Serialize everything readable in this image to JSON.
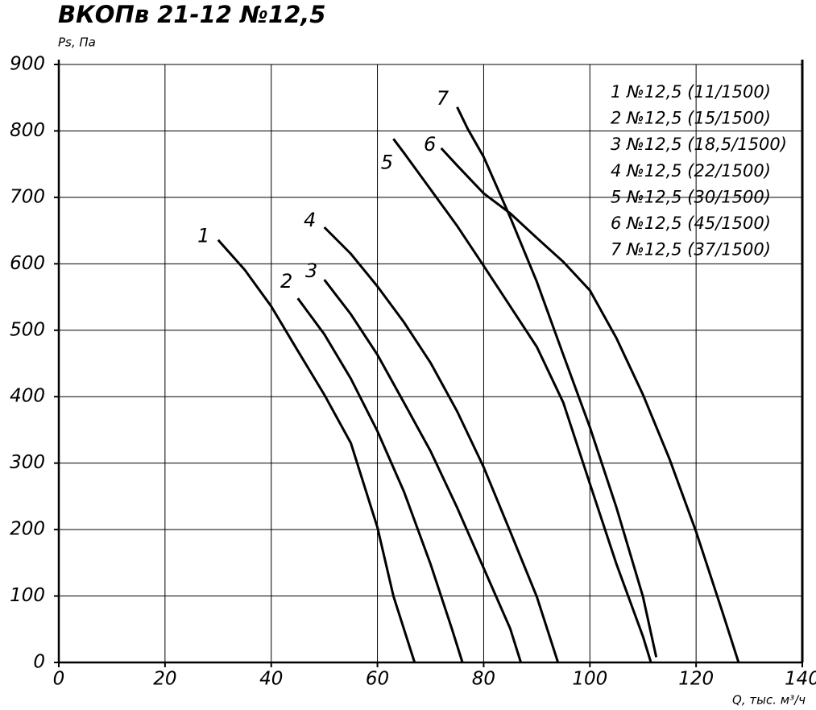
{
  "chart_data": {
    "type": "line",
    "title": "ВКОПв 21-12 №12,5",
    "y_label": "Ps, Па",
    "x_label": "Q, тыс. м³/ч",
    "xlim": [
      0,
      140
    ],
    "xticks": [
      0,
      20,
      40,
      60,
      80,
      100,
      120,
      140
    ],
    "ylim": [
      0,
      900
    ],
    "yticks": [
      0,
      100,
      200,
      300,
      400,
      500,
      600,
      700,
      800,
      900
    ],
    "grid": true,
    "legend": "upper right",
    "series": [
      {
        "name": "1 №12,5 (11/1500)",
        "label": "1",
        "color": "#000000",
        "x": [
          30,
          35,
          40,
          45,
          50,
          55,
          60,
          63,
          67
        ],
        "values": [
          636,
          591,
          536,
          469,
          403,
          330,
          203,
          100,
          0
        ]
      },
      {
        "name": "2 №12,5 (15/1500)",
        "label": "2",
        "color": "#000000",
        "x": [
          45,
          50,
          55,
          60,
          65,
          70,
          74,
          76
        ],
        "values": [
          548,
          494,
          427,
          348,
          257,
          148,
          51,
          0
        ]
      },
      {
        "name": "3 №12,5 (18,5/1500)",
        "label": "3",
        "color": "#000000",
        "x": [
          50,
          55,
          60,
          65,
          70,
          75,
          80,
          85,
          87
        ],
        "values": [
          576,
          524,
          463,
          391,
          318,
          233,
          142,
          51,
          0
        ]
      },
      {
        "name": "4 №12,5 (22/1500)",
        "label": "4",
        "color": "#000000",
        "x": [
          50,
          55,
          60,
          65,
          70,
          75,
          80,
          85,
          90,
          94
        ],
        "values": [
          655,
          615,
          566,
          512,
          451,
          378,
          294,
          197,
          99,
          0
        ]
      },
      {
        "name": "5 №12,5 (30/1500)",
        "label": "5",
        "color": "#000000",
        "x": [
          63,
          65,
          70,
          75,
          80,
          85,
          90,
          95,
          100,
          105,
          110,
          111.5
        ],
        "values": [
          788,
          767,
          712,
          657,
          597,
          536,
          475,
          391,
          269,
          148,
          39,
          0
        ]
      },
      {
        "name": "6 №12,5 (45/1500)",
        "label": "6",
        "color": "#000000",
        "x": [
          72,
          75,
          80,
          85,
          90,
          95,
          100,
          105,
          110,
          115,
          120,
          125,
          128
        ],
        "values": [
          774,
          748,
          706,
          676,
          639,
          603,
          560,
          488,
          403,
          306,
          197,
          75,
          0
        ]
      },
      {
        "name": "7 №12,5 (37/1500)",
        "label": "7",
        "color": "#000000",
        "x": [
          75,
          77,
          80,
          85,
          90,
          95,
          100,
          105,
          110,
          112.5
        ],
        "values": [
          836,
          803,
          761,
          670,
          573,
          463,
          354,
          233,
          99,
          8
        ]
      }
    ]
  }
}
